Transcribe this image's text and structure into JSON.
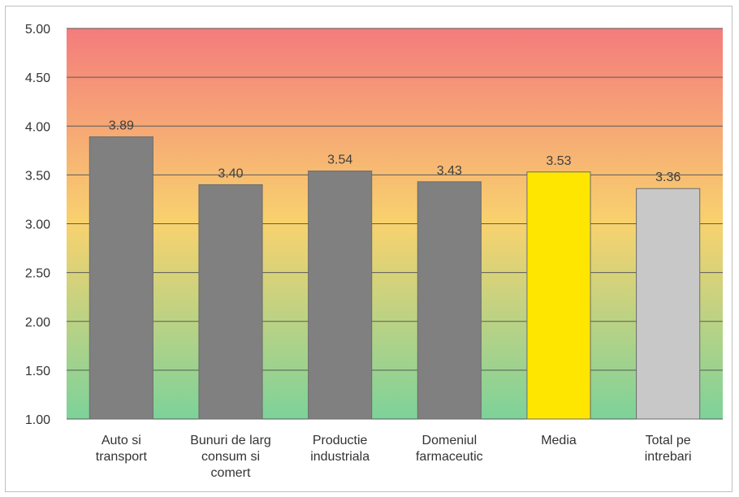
{
  "chart_data": {
    "type": "bar",
    "categories": [
      [
        "Auto si",
        "transport"
      ],
      [
        "Bunuri de larg",
        "consum si",
        "comert"
      ],
      [
        "Productie",
        "industriala"
      ],
      [
        "Domeniul",
        "farmaceutic"
      ],
      [
        "Media"
      ],
      [
        "Total pe",
        "intrebari"
      ]
    ],
    "values": [
      3.89,
      3.4,
      3.54,
      3.43,
      3.53,
      3.36
    ],
    "value_labels": [
      "3.89",
      "3.40",
      "3.54",
      "3.43",
      "3.53",
      "3.36"
    ],
    "bar_colors": [
      "#808080",
      "#808080",
      "#808080",
      "#808080",
      "#ffe600",
      "#c8c8c8"
    ],
    "y_ticks": [
      "1.00",
      "1.50",
      "2.00",
      "2.50",
      "3.00",
      "3.50",
      "4.00",
      "4.50",
      "5.00"
    ],
    "ylim": [
      1,
      5
    ],
    "title": "",
    "xlabel": "",
    "ylabel": "",
    "legend": "none",
    "grid": true,
    "background_gradient": [
      "#f47c7c",
      "#f8d26e",
      "#7dd29a"
    ]
  }
}
